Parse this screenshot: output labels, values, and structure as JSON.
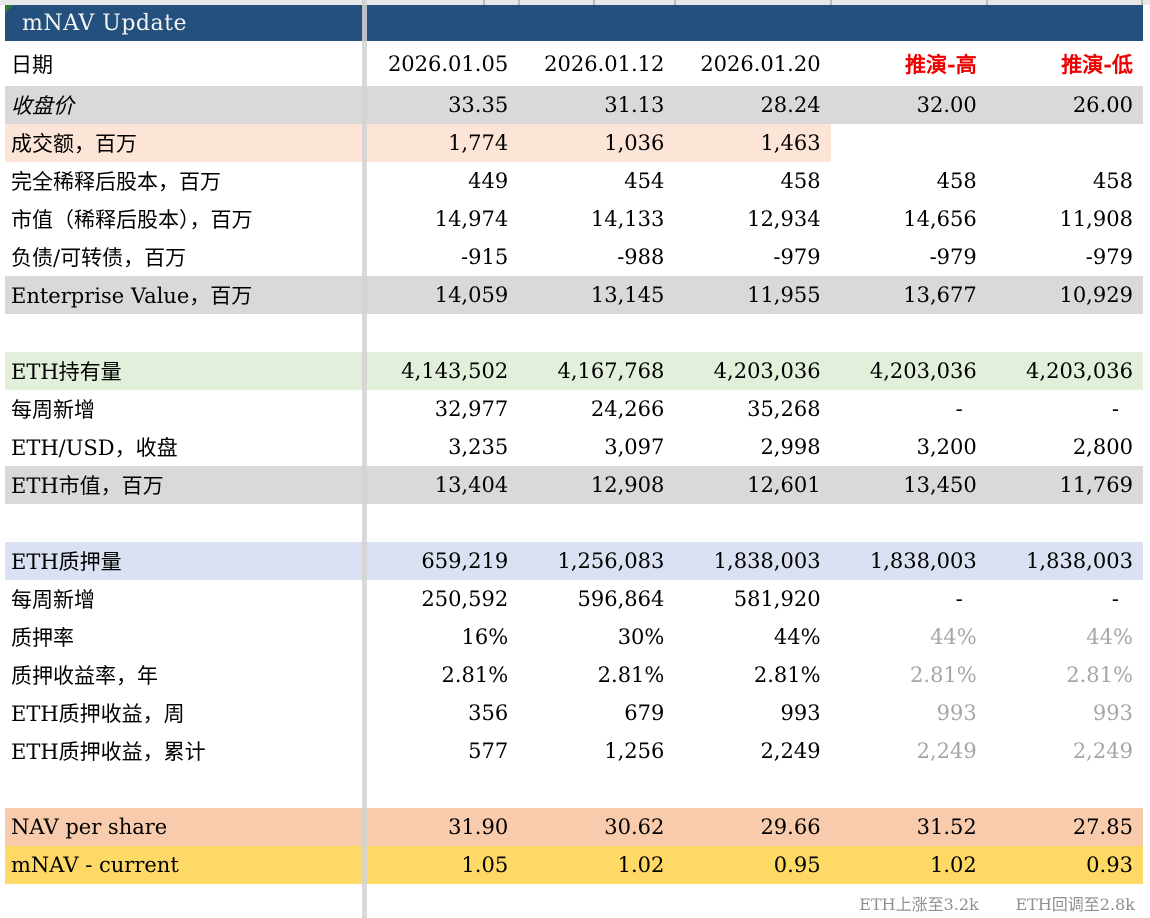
{
  "colors": {
    "header_blue": "#23507C",
    "band_gray": "#D9D9D9",
    "band_peach": "#FCE4D6",
    "band_green": "#E2EFDA",
    "band_lavender": "#D9E1F2",
    "band_orange": "#F8CBAD",
    "band_yellow": "#FFD966",
    "scenario_red": "#EE0000",
    "muted_value_gray": "#A6A6A6",
    "footnote_gray": "#8F8F8F"
  },
  "table": {
    "title": "mNAV Update",
    "red_cols": [
      3,
      4
    ],
    "rows": [
      {
        "name": "date-row",
        "type": "colheader",
        "label": "日期",
        "values": [
          "2026.01.05",
          "2026.01.12",
          "2026.01.20",
          "推演-高",
          "推演-低"
        ]
      },
      {
        "name": "closing-price-row",
        "label": "收盘价",
        "band": "gray",
        "italic": true,
        "values": [
          "33.35",
          "31.13",
          "28.24",
          "32.00",
          "26.00"
        ]
      },
      {
        "name": "turnover-row",
        "label": "成交额，百万",
        "band": "peach",
        "values": [
          "1,774",
          "1,036",
          "1,463",
          "",
          ""
        ]
      },
      {
        "name": "fully-diluted-shares-row",
        "label": "完全稀释后股本，百万",
        "values": [
          "449",
          "454",
          "458",
          "458",
          "458"
        ]
      },
      {
        "name": "market-cap-diluted-row",
        "label": "市值（稀释后股本），百万",
        "values": [
          "14,974",
          "14,133",
          "12,934",
          "14,656",
          "11,908"
        ]
      },
      {
        "name": "debt-convertible-row",
        "label": "负债/可转债，百万",
        "values": [
          "-915",
          "-988",
          "-979",
          "-979",
          "-979"
        ]
      },
      {
        "name": "enterprise-value-row",
        "label": "Enterprise Value，百万",
        "band": "gray",
        "values": [
          "14,059",
          "13,145",
          "11,955",
          "13,677",
          "10,929"
        ]
      },
      {
        "name": "spacer-row-1",
        "type": "spacer"
      },
      {
        "name": "eth-holdings-row",
        "label": "ETH持有量",
        "band": "green",
        "values": [
          "4,143,502",
          "4,167,768",
          "4,203,036",
          "4,203,036",
          "4,203,036"
        ]
      },
      {
        "name": "weekly-added-holdings-row",
        "label": "每周新增",
        "values": [
          "32,977",
          "24,266",
          "35,268",
          "-",
          "-"
        ]
      },
      {
        "name": "eth-usd-close-row",
        "label": "ETH/USD，收盘",
        "values": [
          "3,235",
          "3,097",
          "2,998",
          "3,200",
          "2,800"
        ]
      },
      {
        "name": "eth-market-cap-row",
        "label": "ETH市值，百万",
        "band": "gray",
        "values": [
          "13,404",
          "12,908",
          "12,601",
          "13,450",
          "11,769"
        ]
      },
      {
        "name": "spacer-row-2",
        "type": "spacer"
      },
      {
        "name": "eth-staked-row",
        "label": "ETH质押量",
        "band": "lavender",
        "values": [
          "659,219",
          "1,256,083",
          "1,838,003",
          "1,838,003",
          "1,838,003"
        ]
      },
      {
        "name": "weekly-added-staked-row",
        "label": "每周新增",
        "values": [
          "250,592",
          "596,864",
          "581,920",
          "-",
          "-"
        ]
      },
      {
        "name": "staking-ratio-row",
        "label": "质押率",
        "values": [
          "16%",
          "30%",
          "44%",
          "44%",
          "44%"
        ],
        "muted": [
          3,
          4
        ]
      },
      {
        "name": "staking-yield-annual-row",
        "label": "质押收益率，年",
        "values": [
          "2.81%",
          "2.81%",
          "2.81%",
          "2.81%",
          "2.81%"
        ],
        "muted": [
          3,
          4
        ]
      },
      {
        "name": "staking-income-weekly-row",
        "label": "ETH质押收益，周",
        "values": [
          "356",
          "679",
          "993",
          "993",
          "993"
        ],
        "muted": [
          3,
          4
        ]
      },
      {
        "name": "staking-income-cumulative-row",
        "label": "ETH质押收益，累计",
        "values": [
          "577",
          "1,256",
          "2,249",
          "2,249",
          "2,249"
        ],
        "muted": [
          3,
          4
        ]
      },
      {
        "name": "spacer-row-3",
        "type": "spacer",
        "height": 38
      },
      {
        "name": "nav-per-share-row",
        "label": "NAV per share",
        "band": "orange",
        "values": [
          "31.90",
          "30.62",
          "29.66",
          "31.52",
          "27.85"
        ]
      },
      {
        "name": "mnav-current-row",
        "label": "mNAV - current",
        "band": "yellow",
        "values": [
          "1.05",
          "1.02",
          "0.95",
          "1.02",
          "0.93"
        ]
      },
      {
        "name": "footnote-row",
        "type": "footnote",
        "values": [
          "",
          "",
          "",
          "ETH上涨至3.2k",
          "ETH回调至2.8k"
        ]
      }
    ]
  }
}
